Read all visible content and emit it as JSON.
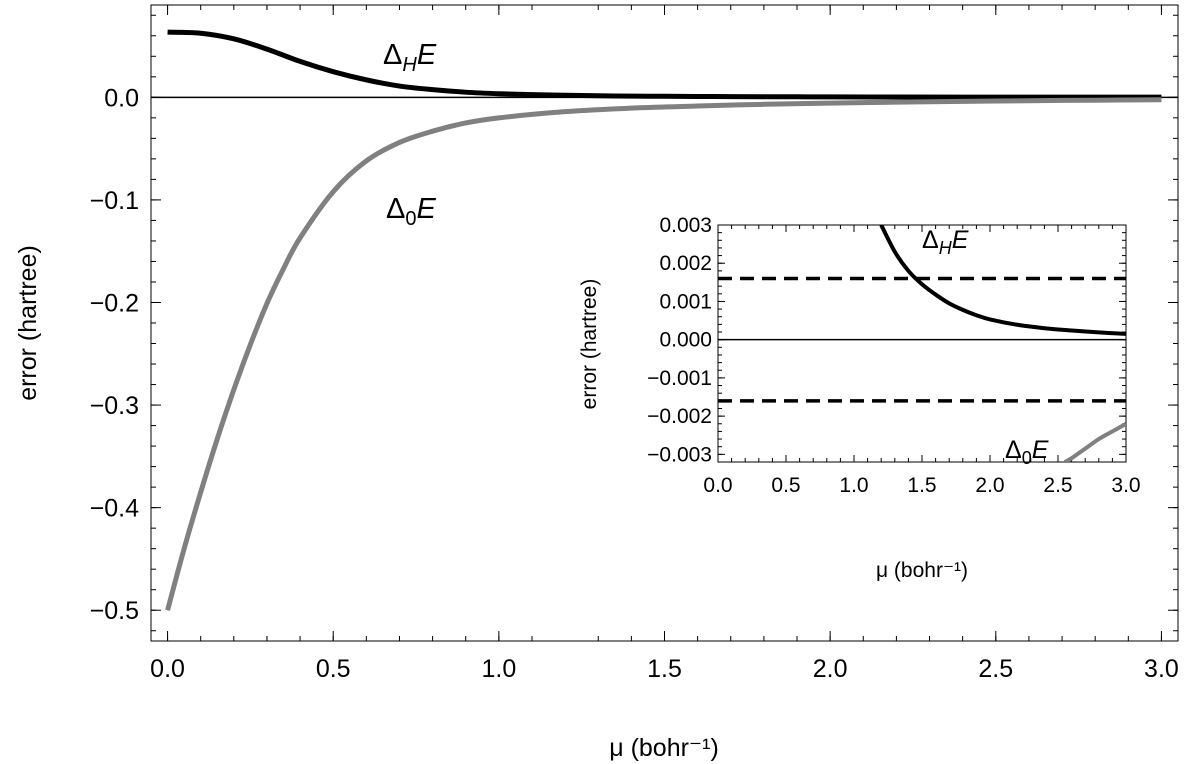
{
  "chart_data": [
    {
      "type": "line",
      "title": "",
      "xlabel": "μ (bohr⁻¹)",
      "ylabel": "error (hartree)",
      "xlim": [
        -0.05,
        3.05
      ],
      "ylim": [
        -0.53,
        0.09
      ],
      "xticks": [
        "0.0",
        "0.5",
        "1.0",
        "1.5",
        "2.0",
        "2.5",
        "3.0"
      ],
      "yticks": [
        "−0.5",
        "−0.4",
        "−0.3",
        "−0.2",
        "−0.1",
        "0.0"
      ],
      "annotations": [
        {
          "text": "Δ_H E",
          "series": "DeltaH"
        },
        {
          "text": "Δ_0 E",
          "series": "Delta0"
        }
      ],
      "series": [
        {
          "key": "DeltaH",
          "color": "#000000",
          "x": [
            0.0,
            0.1,
            0.2,
            0.3,
            0.4,
            0.5,
            0.6,
            0.7,
            0.8,
            0.9,
            1.0,
            1.1,
            1.2,
            1.3,
            1.4,
            1.5,
            1.6,
            1.7,
            1.8,
            1.9,
            2.0,
            2.2,
            2.4,
            2.6,
            2.8,
            3.0
          ],
          "y": [
            0.0635,
            0.0625,
            0.057,
            0.047,
            0.035,
            0.025,
            0.017,
            0.011,
            0.0075,
            0.005,
            0.0035,
            0.0026,
            0.002,
            0.0015,
            0.0012,
            0.001,
            0.0008,
            0.0007,
            0.0006,
            0.0005,
            0.0004,
            0.0003,
            0.00025,
            0.0002,
            0.00017,
            0.00014
          ]
        },
        {
          "key": "Delta0",
          "color": "#808080",
          "x": [
            0.0,
            0.05,
            0.1,
            0.15,
            0.2,
            0.25,
            0.3,
            0.35,
            0.4,
            0.5,
            0.6,
            0.7,
            0.8,
            0.9,
            1.0,
            1.2,
            1.4,
            1.6,
            1.8,
            2.0,
            2.2,
            2.4,
            2.6,
            2.8,
            3.0
          ],
          "y": [
            -0.5,
            -0.44,
            -0.385,
            -0.333,
            -0.285,
            -0.241,
            -0.201,
            -0.167,
            -0.137,
            -0.092,
            -0.062,
            -0.044,
            -0.033,
            -0.025,
            -0.02,
            -0.014,
            -0.0105,
            -0.0085,
            -0.0068,
            -0.0056,
            -0.0047,
            -0.0039,
            -0.0033,
            -0.0028,
            -0.0024
          ]
        }
      ],
      "reference_lines": [
        {
          "y": 0.0,
          "style": "solid"
        }
      ]
    },
    {
      "type": "line",
      "title": "",
      "xlabel": "μ (bohr⁻¹)",
      "ylabel": "error (hartree)",
      "xlim": [
        0.0,
        3.0
      ],
      "ylim": [
        -0.0032,
        0.003
      ],
      "xticks": [
        "0.0",
        "0.5",
        "1.0",
        "1.5",
        "2.0",
        "2.5",
        "3.0"
      ],
      "yticks": [
        "0.003",
        "0.002",
        "0.001",
        "0.000",
        "−0.001",
        "−0.002",
        "−0.003"
      ],
      "annotations": [
        {
          "text": "Δ_H E",
          "series": "DeltaH"
        },
        {
          "text": "Δ_0 E",
          "series": "Delta0"
        }
      ],
      "series": [
        {
          "key": "DeltaH",
          "color": "#000000",
          "x": [
            1.2,
            1.3,
            1.4,
            1.5,
            1.6,
            1.7,
            1.8,
            1.9,
            2.0,
            2.2,
            2.4,
            2.6,
            2.8,
            3.0
          ],
          "y": [
            0.003,
            0.0023,
            0.0018,
            0.00145,
            0.00118,
            0.00095,
            0.00078,
            0.00064,
            0.00053,
            0.00039,
            0.0003,
            0.00024,
            0.00019,
            0.00015
          ]
        },
        {
          "key": "Delta0",
          "color": "#808080",
          "x": [
            2.55,
            2.6,
            2.7,
            2.8,
            2.9,
            3.0
          ],
          "y": [
            -0.0032,
            -0.0031,
            -0.00285,
            -0.0026,
            -0.0024,
            -0.0022
          ]
        }
      ],
      "reference_lines": [
        {
          "y": 0.0,
          "style": "solid"
        },
        {
          "y": 0.0016,
          "style": "dashed"
        },
        {
          "y": -0.0016,
          "style": "dashed"
        }
      ]
    }
  ]
}
